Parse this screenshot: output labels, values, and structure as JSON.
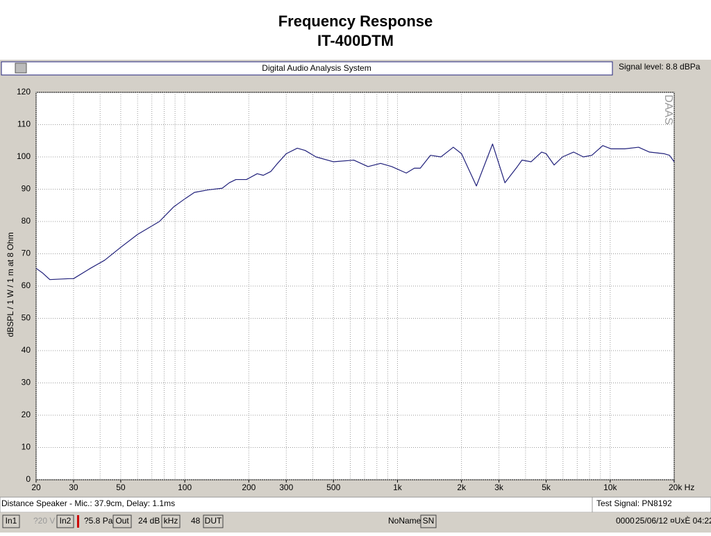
{
  "chart_data": {
    "type": "line",
    "title": "Frequency Response",
    "subtitle": "IT-400DTM",
    "y_label": "dBSPL / 1 W / 1 m at 8 Ohm",
    "watermark": "DAAS",
    "log_x": true,
    "grid": true,
    "color": "#1f1f7a",
    "xlim": [
      20,
      20000
    ],
    "ylim": [
      0,
      120
    ],
    "xticks": [
      20,
      30,
      50,
      100,
      200,
      300,
      500,
      {
        "value": 1000,
        "label": "1k"
      },
      {
        "value": 2000,
        "label": "2k"
      },
      {
        "value": 3000,
        "label": "3k"
      },
      {
        "value": 5000,
        "label": "5k"
      },
      {
        "value": 10000,
        "label": "10k"
      },
      {
        "value": 20000,
        "label": "20k Hz"
      }
    ],
    "xgrid": [
      20,
      30,
      40,
      50,
      60,
      70,
      80,
      90,
      100,
      200,
      300,
      400,
      500,
      600,
      700,
      800,
      900,
      1000,
      2000,
      3000,
      4000,
      5000,
      6000,
      7000,
      8000,
      9000,
      10000,
      20000
    ],
    "yticks": [
      0,
      10,
      20,
      30,
      40,
      50,
      60,
      70,
      80,
      90,
      100,
      110,
      120
    ],
    "x": [
      20,
      21.5,
      23.2,
      28.7,
      30,
      36,
      42,
      50,
      60,
      76,
      88.6,
      100,
      111,
      129,
      150,
      162,
      174,
      195,
      219,
      234,
      254,
      273,
      300,
      338,
      368,
      414,
      499,
      624,
      727,
      833,
      940,
      1100,
      1200,
      1280,
      1430,
      1600,
      1830,
      2000,
      2350,
      2800,
      3200,
      3660,
      3850,
      4250,
      4760,
      5000,
      5450,
      5970,
      6730,
      7480,
      8200,
      9230,
      10100,
      11700,
      13600,
      15300,
      17900,
      19000,
      20000
    ],
    "values": [
      65.5,
      64,
      62,
      62.3,
      62.3,
      65.5,
      68,
      72,
      76,
      80,
      84.5,
      87,
      89,
      89.8,
      90.3,
      92,
      93,
      93,
      94.8,
      94.3,
      95.5,
      98,
      101,
      102.7,
      102,
      100,
      98.5,
      99,
      97,
      98,
      97,
      95,
      96.5,
      96.5,
      100.5,
      100,
      103,
      101,
      91,
      104,
      92,
      97,
      99,
      98.5,
      101.5,
      101,
      97.5,
      100,
      101.5,
      100,
      100.5,
      103.5,
      102.5,
      102.5,
      103,
      101.5,
      101,
      100.5,
      98.5
    ]
  },
  "ui": {
    "toolbar_title": "Digital Audio Analysis System",
    "signal_level": "Signal level:  8.8 dBPa",
    "status_left": "Distance Speaker - Mic.: 37.9cm, Delay: 1.1ms",
    "status_right": "Test Signal: PN8192",
    "in1": "In1",
    "in1_level": "?20 V",
    "in2": "In2",
    "in2_level": "?5.8 Pa",
    "out": "Out",
    "out_level": "24 dB",
    "khz": "kHz",
    "rate": "48",
    "dut": "DUT",
    "dut_name": "NoName",
    "sn": "SN",
    "sn_value": "0000",
    "date": "25/06/12",
    "time": "¤UxÈ 04:22"
  }
}
